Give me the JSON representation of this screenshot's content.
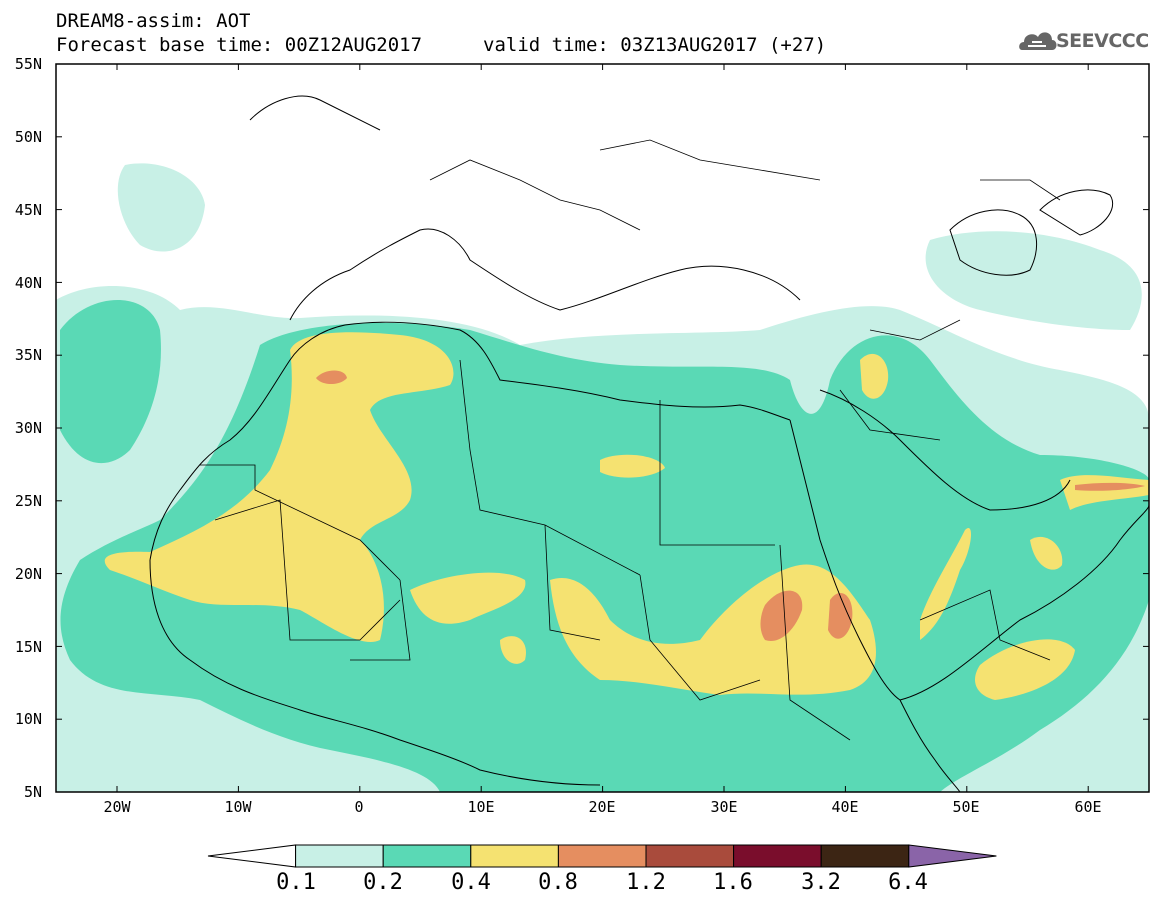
{
  "header": {
    "title": "DREAM8-assim: AOT",
    "base_time": "Forecast base time: 00Z12AUG2017",
    "valid_time": "valid time: 03Z13AUG2017 (+27)"
  },
  "logo": {
    "text": "SEEVCCC"
  },
  "axes": {
    "lat_labels": [
      "55N",
      "50N",
      "45N",
      "40N",
      "35N",
      "30N",
      "25N",
      "20N",
      "15N",
      "10N",
      "5N"
    ],
    "lon_labels": [
      "20W",
      "10W",
      "0",
      "10E",
      "20E",
      "30E",
      "40E",
      "50E",
      "60E"
    ]
  },
  "colorbar": {
    "levels": [
      "0.1",
      "0.2",
      "0.4",
      "0.8",
      "1.2",
      "1.6",
      "3.2",
      "6.4"
    ],
    "colors": [
      "#ffffff",
      "#c8f0e6",
      "#5ad9b5",
      "#f5e271",
      "#e58e60",
      "#a94b3c",
      "#7a0d2c",
      "#3c2514",
      "#8a64a8"
    ]
  },
  "colors": {
    "coast": "#000000",
    "frame": "#000000"
  }
}
